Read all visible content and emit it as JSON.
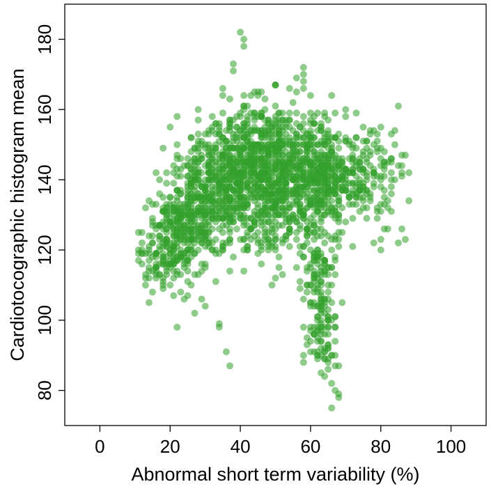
{
  "chart_data": {
    "type": "scatter",
    "title": "",
    "xlabel": "Abnormal short term variability (%)",
    "ylabel": "Cardiotocographic histogram mean",
    "xlim": [
      -10,
      110
    ],
    "ylim": [
      70,
      190
    ],
    "xticks": [
      0,
      20,
      40,
      60,
      80,
      100
    ],
    "yticks": [
      80,
      100,
      120,
      140,
      160,
      180
    ],
    "grid": false,
    "legend": "none",
    "point_color": "#33a02c",
    "point_opacity": 0.55,
    "n_points_approx": 2100,
    "density_clusters": [
      {
        "x": 22,
        "y": 125,
        "sx": 4,
        "sy": 7,
        "w": 250
      },
      {
        "x": 30,
        "y": 134,
        "sx": 5,
        "sy": 8,
        "w": 300
      },
      {
        "x": 38,
        "y": 140,
        "sx": 6,
        "sy": 9,
        "w": 320
      },
      {
        "x": 45,
        "y": 146,
        "sx": 6,
        "sy": 8,
        "w": 300
      },
      {
        "x": 52,
        "y": 143,
        "sx": 5,
        "sy": 9,
        "w": 300
      },
      {
        "x": 60,
        "y": 140,
        "sx": 5,
        "sy": 9,
        "w": 280
      },
      {
        "x": 67,
        "y": 141,
        "sx": 5,
        "sy": 7,
        "w": 180
      },
      {
        "x": 77,
        "y": 142,
        "sx": 5,
        "sy": 7,
        "w": 120
      },
      {
        "x": 48,
        "y": 128,
        "sx": 7,
        "sy": 7,
        "w": 120
      },
      {
        "x": 62,
        "y": 112,
        "sx": 2,
        "sy": 7,
        "w": 90
      },
      {
        "x": 63,
        "y": 95,
        "sx": 2.5,
        "sy": 5,
        "w": 60
      },
      {
        "x": 16,
        "y": 118,
        "sx": 3,
        "sy": 6,
        "w": 50
      }
    ],
    "points": [
      {
        "x": 40,
        "y": 182
      },
      {
        "x": 41,
        "y": 180
      },
      {
        "x": 41,
        "y": 178
      },
      {
        "x": 38,
        "y": 173
      },
      {
        "x": 38,
        "y": 171
      },
      {
        "x": 58,
        "y": 172
      },
      {
        "x": 58,
        "y": 170
      },
      {
        "x": 58,
        "y": 168
      },
      {
        "x": 50,
        "y": 167
      },
      {
        "x": 45,
        "y": 164
      },
      {
        "x": 35,
        "y": 166
      },
      {
        "x": 56,
        "y": 165
      },
      {
        "x": 66,
        "y": 164
      },
      {
        "x": 70,
        "y": 160
      },
      {
        "x": 73,
        "y": 159
      },
      {
        "x": 22,
        "y": 158
      },
      {
        "x": 20,
        "y": 155
      },
      {
        "x": 18,
        "y": 149
      },
      {
        "x": 84,
        "y": 154
      },
      {
        "x": 84,
        "y": 150
      },
      {
        "x": 83,
        "y": 145
      },
      {
        "x": 85,
        "y": 122
      },
      {
        "x": 86,
        "y": 126
      },
      {
        "x": 87,
        "y": 123
      },
      {
        "x": 80,
        "y": 123
      },
      {
        "x": 80,
        "y": 120
      },
      {
        "x": 78,
        "y": 122
      },
      {
        "x": 12,
        "y": 119
      },
      {
        "x": 12,
        "y": 122
      },
      {
        "x": 13,
        "y": 110
      },
      {
        "x": 13,
        "y": 113
      },
      {
        "x": 15,
        "y": 108
      },
      {
        "x": 16,
        "y": 115
      },
      {
        "x": 22,
        "y": 98
      },
      {
        "x": 24,
        "y": 106
      },
      {
        "x": 30,
        "y": 104
      },
      {
        "x": 29,
        "y": 106
      },
      {
        "x": 34,
        "y": 99
      },
      {
        "x": 34,
        "y": 98
      },
      {
        "x": 36,
        "y": 91
      },
      {
        "x": 37,
        "y": 87
      },
      {
        "x": 58,
        "y": 90
      },
      {
        "x": 58,
        "y": 88
      },
      {
        "x": 60,
        "y": 94
      },
      {
        "x": 61,
        "y": 96
      },
      {
        "x": 62,
        "y": 89
      },
      {
        "x": 63,
        "y": 85
      },
      {
        "x": 64,
        "y": 84
      },
      {
        "x": 65,
        "y": 88
      },
      {
        "x": 66,
        "y": 82
      },
      {
        "x": 67,
        "y": 80
      },
      {
        "x": 68,
        "y": 79
      },
      {
        "x": 68,
        "y": 78
      },
      {
        "x": 68,
        "y": 87
      },
      {
        "x": 66,
        "y": 75
      },
      {
        "x": 64,
        "y": 92
      },
      {
        "x": 62,
        "y": 100
      },
      {
        "x": 63,
        "y": 103
      },
      {
        "x": 64,
        "y": 106
      },
      {
        "x": 60,
        "y": 105
      },
      {
        "x": 59,
        "y": 110
      },
      {
        "x": 57,
        "y": 109
      },
      {
        "x": 56,
        "y": 115
      },
      {
        "x": 67,
        "y": 118
      },
      {
        "x": 66,
        "y": 115
      },
      {
        "x": 67,
        "y": 113
      }
    ]
  }
}
